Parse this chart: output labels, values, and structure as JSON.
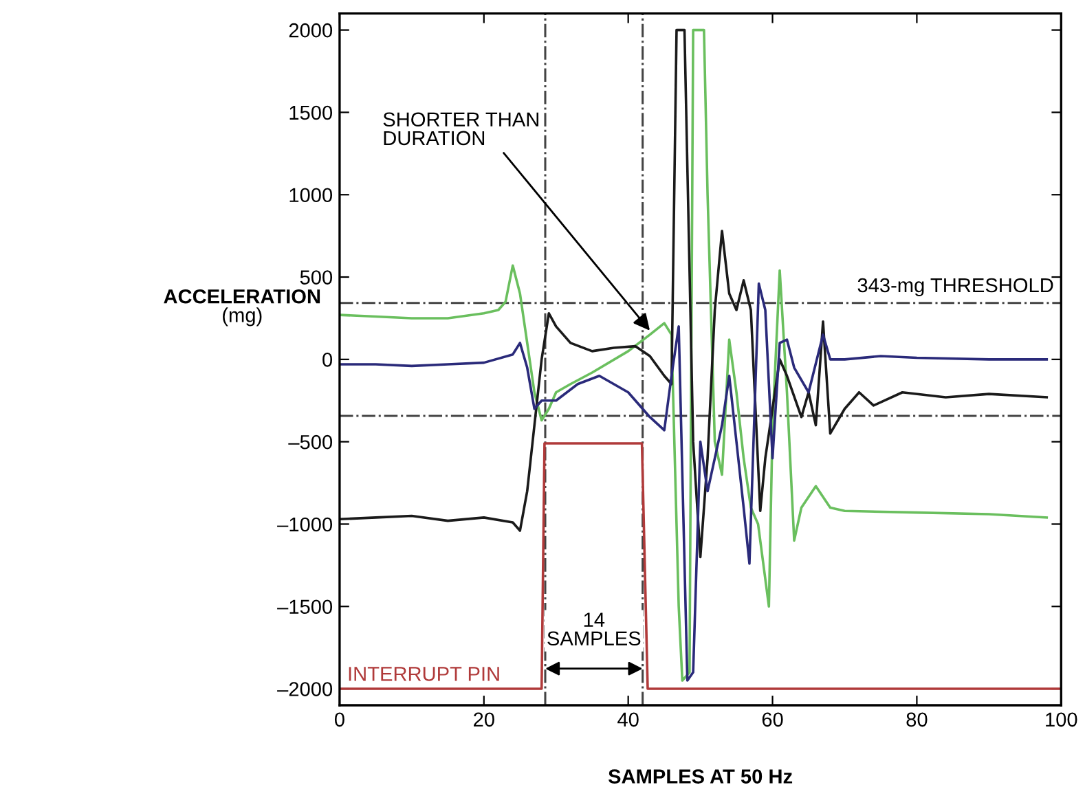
{
  "chart_data": {
    "type": "line",
    "xlabel": "SAMPLES AT 50 Hz",
    "ylabel": "ACCELERATION\n(mg)",
    "xlim": [
      0,
      100
    ],
    "xticks": [
      0,
      20,
      40,
      60,
      80,
      100
    ],
    "ylim": [
      -2100,
      2100
    ],
    "yticks": [
      {
        "value": -2000,
        "label": "–2000"
      },
      {
        "value": -1500,
        "label": "–1500"
      },
      {
        "value": -1000,
        "label": "–1000"
      },
      {
        "value": -500,
        "label": "–500"
      },
      0,
      500,
      1000,
      1500,
      2000
    ],
    "grid": false,
    "legend": false,
    "marker": "none",
    "line_style": "solid",
    "series": [
      {
        "color": "#6abf5e",
        "x": [
          0,
          5,
          10,
          15,
          20,
          22,
          23,
          24,
          25,
          26,
          27,
          28,
          29,
          30,
          32,
          35,
          40,
          43,
          45,
          46,
          47,
          47.5,
          48.5,
          49,
          50.5,
          51,
          52,
          53,
          54,
          55,
          56,
          57,
          58,
          59.5,
          60,
          61,
          62,
          63,
          64,
          66,
          68,
          70,
          80,
          90,
          98
        ],
        "values": [
          270,
          260,
          250,
          250,
          280,
          300,
          350,
          570,
          400,
          100,
          -200,
          -370,
          -300,
          -200,
          -150,
          -80,
          50,
          150,
          220,
          150,
          -1500,
          -1950,
          -1900,
          2000,
          2000,
          1000,
          -500,
          -700,
          120,
          -200,
          -600,
          -900,
          -1000,
          -1500,
          -400,
          540,
          -200,
          -1100,
          -900,
          -770,
          -900,
          -920,
          -930,
          -940,
          -960
        ]
      },
      {
        "color": "#1a1a1a",
        "x": [
          0,
          5,
          10,
          15,
          20,
          24,
          25,
          26,
          27,
          28,
          29,
          30,
          32,
          35,
          38,
          41,
          43,
          45,
          46,
          46.7,
          47.8,
          49,
          50,
          51,
          52,
          53,
          54,
          55,
          56,
          57,
          58.3,
          59,
          60,
          61,
          62,
          64,
          65,
          66,
          67,
          68,
          70,
          72,
          74,
          78,
          84,
          90,
          98
        ],
        "values": [
          -970,
          -960,
          -950,
          -980,
          -960,
          -990,
          -1040,
          -800,
          -400,
          0,
          280,
          200,
          100,
          50,
          70,
          80,
          20,
          -100,
          -150,
          2000,
          2000,
          -500,
          -1200,
          -600,
          300,
          780,
          400,
          300,
          480,
          300,
          -920,
          -600,
          -300,
          0,
          -100,
          -350,
          -200,
          -400,
          230,
          -450,
          -300,
          -200,
          -280,
          -200,
          -230,
          -210,
          -230
        ]
      },
      {
        "color": "#2a2a7a",
        "x": [
          0,
          5,
          10,
          15,
          20,
          24,
          25,
          26,
          27,
          28,
          30,
          33,
          36,
          40,
          43,
          45,
          46,
          47,
          48.2,
          49,
          50,
          51,
          52,
          53,
          54,
          55,
          56,
          56.8,
          58.1,
          59,
          60,
          61,
          62,
          63,
          65,
          67,
          68,
          70,
          75,
          80,
          90,
          98
        ],
        "values": [
          -30,
          -30,
          -40,
          -30,
          -20,
          30,
          100,
          -50,
          -300,
          -250,
          -250,
          -150,
          -100,
          -200,
          -350,
          -430,
          -100,
          200,
          -1950,
          -1900,
          -500,
          -800,
          -600,
          -400,
          -100,
          -500,
          -900,
          -1240,
          460,
          300,
          -600,
          100,
          120,
          -50,
          -200,
          150,
          0,
          0,
          20,
          10,
          0,
          0
        ]
      },
      {
        "name": "INTERRUPT PIN",
        "color": "#b03a3a",
        "x": [
          0,
          28,
          28.4,
          41.9,
          42.7,
          100
        ],
        "values": [
          -2000,
          -2000,
          -510,
          -510,
          -2000,
          -2000
        ]
      }
    ],
    "ref_lines": [
      {
        "axis": "y",
        "value": 343,
        "label": "343-mg THRESHOLD",
        "color": "#444444",
        "line_style": "dashdot"
      },
      {
        "axis": "y",
        "value": -343,
        "color": "#444444",
        "line_style": "dashdot"
      },
      {
        "axis": "x",
        "value": 28.5,
        "color": "#444444",
        "line_style": "dashdot"
      },
      {
        "axis": "x",
        "value": 42,
        "color": "#444444",
        "line_style": "dashdot"
      }
    ],
    "annotations": [
      {
        "text": "SHORTER THAN\nDURATION",
        "x": 43,
        "y": 175
      },
      "14\nSAMPLES"
    ]
  }
}
